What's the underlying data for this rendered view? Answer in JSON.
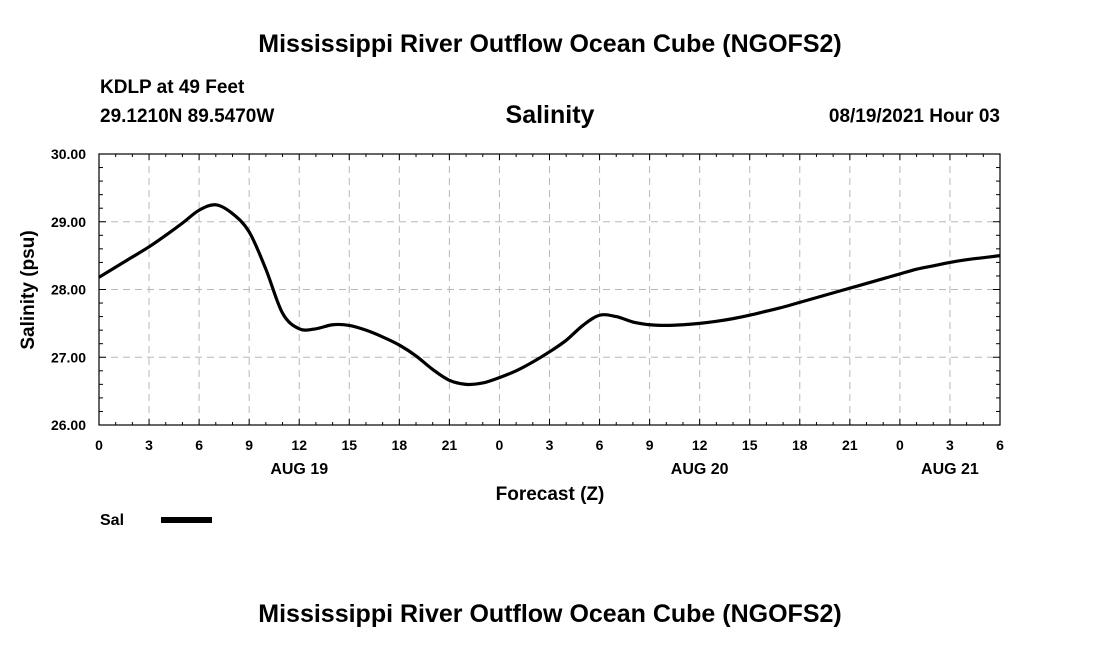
{
  "header": {
    "title": "Mississippi River Outflow Ocean Cube (NGOFS2)",
    "station": "KDLP at 49 Feet",
    "coordinates": "29.1210N  89.5470W",
    "timestamp": "08/19/2021 Hour 03"
  },
  "footer": {
    "title": "Mississippi River Outflow Ocean Cube (NGOFS2)"
  },
  "chart_data": {
    "type": "line",
    "title": "Salinity",
    "xlabel": "Forecast (Z)",
    "ylabel": "Salinity (psu)",
    "ylim": [
      26.0,
      30.0
    ],
    "yticks": [
      "26.00",
      "27.00",
      "28.00",
      "29.00",
      "30.00"
    ],
    "xlim": [
      0,
      54
    ],
    "xticks": [
      {
        "h": 0,
        "label": "0"
      },
      {
        "h": 3,
        "label": "3"
      },
      {
        "h": 6,
        "label": "6"
      },
      {
        "h": 9,
        "label": "9"
      },
      {
        "h": 12,
        "label": "12"
      },
      {
        "h": 15,
        "label": "15"
      },
      {
        "h": 18,
        "label": "18"
      },
      {
        "h": 21,
        "label": "21"
      },
      {
        "h": 24,
        "label": "0"
      },
      {
        "h": 27,
        "label": "3"
      },
      {
        "h": 30,
        "label": "6"
      },
      {
        "h": 33,
        "label": "9"
      },
      {
        "h": 36,
        "label": "12"
      },
      {
        "h": 39,
        "label": "15"
      },
      {
        "h": 42,
        "label": "18"
      },
      {
        "h": 45,
        "label": "21"
      },
      {
        "h": 48,
        "label": "0"
      },
      {
        "h": 51,
        "label": "3"
      },
      {
        "h": 54,
        "label": "6"
      }
    ],
    "date_labels": [
      {
        "h": 12,
        "label": "AUG 19"
      },
      {
        "h": 36,
        "label": "AUG 20"
      },
      {
        "h": 51,
        "label": "AUG 21"
      }
    ],
    "grid": true,
    "legend": {
      "position": "bottom-left",
      "entries": [
        "Sal"
      ]
    },
    "series": [
      {
        "name": "Sal",
        "x": [
          0,
          1,
          2,
          3,
          4,
          5,
          6,
          7,
          8,
          9,
          10,
          11,
          12,
          13,
          14,
          15,
          16,
          17,
          18,
          19,
          20,
          21,
          22,
          23,
          24,
          25,
          26,
          27,
          28,
          29,
          30,
          31,
          32,
          33,
          34,
          35,
          36,
          37,
          38,
          39,
          40,
          41,
          42,
          43,
          44,
          45,
          46,
          47,
          48,
          49,
          50,
          51,
          52,
          53,
          54
        ],
        "values": [
          28.18,
          28.33,
          28.48,
          28.63,
          28.8,
          28.98,
          29.17,
          29.25,
          29.12,
          28.85,
          28.3,
          27.65,
          27.42,
          27.42,
          27.48,
          27.47,
          27.4,
          27.3,
          27.18,
          27.02,
          26.82,
          26.66,
          26.6,
          26.62,
          26.7,
          26.8,
          26.93,
          27.08,
          27.25,
          27.47,
          27.62,
          27.6,
          27.52,
          27.48,
          27.47,
          27.48,
          27.5,
          27.53,
          27.57,
          27.62,
          27.68,
          27.74,
          27.81,
          27.88,
          27.95,
          28.02,
          28.09,
          28.16,
          28.23,
          28.3,
          28.35,
          28.4,
          28.44,
          28.47,
          28.5
        ]
      }
    ]
  }
}
